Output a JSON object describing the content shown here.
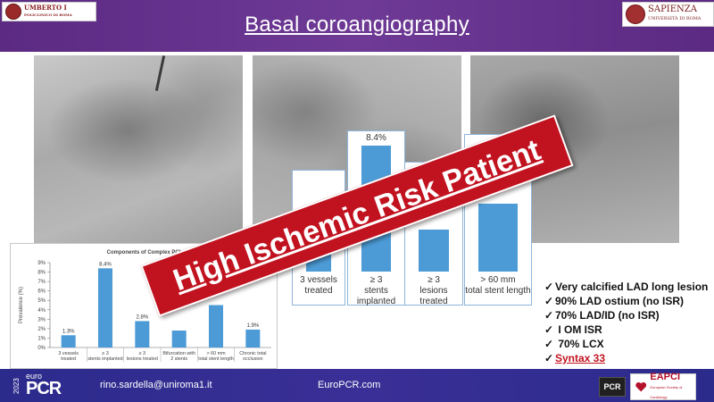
{
  "header": {
    "title": "Basal coroangiography",
    "logo_left": {
      "name": "UMBERTO I",
      "subtitle": "POLICLINICO DI ROMA"
    },
    "logo_right": {
      "name": "SAPIENZA",
      "subtitle": "UNIVERSITÀ DI ROMA"
    }
  },
  "banner": {
    "text": "High Ischemic Risk Patient"
  },
  "checklist": {
    "check_mark": "✓",
    "items": [
      "Very calcified LAD long lesion",
      "90% LAD ostium (no ISR)",
      "70%  LAD/ID (no ISR)",
      " I OM ISR",
      " 70% LCX",
      "Syntax 33"
    ]
  },
  "footer": {
    "year": "2023",
    "euro": "euro",
    "brand": "PCR",
    "email": "rino.sardella@uniroma1.it",
    "website": "EuroPCR.com",
    "pcr_logo": "PCR",
    "eapci_logo": "EAPCI",
    "eapci_subtitle": "European Society of Cardiology"
  },
  "colors": {
    "header_purple": "#5b2a82",
    "banner_red": "#c1121f",
    "bar_blue": "#4c9bd6",
    "footer_blue": "#2b2b8c"
  },
  "chart_data": [
    {
      "type": "bar",
      "title": "Components of Complex PCI",
      "ylabel": "Prevalence (%)",
      "xlabel": "",
      "ylim": [
        0,
        9
      ],
      "yticks": [
        "0%",
        "1%",
        "2%",
        "3%",
        "4%",
        "5%",
        "6%",
        "7%",
        "8%",
        "9%"
      ],
      "grid": false,
      "categories": [
        "3 vessels treated",
        "≥ 3 stents implanted",
        "≥ 3 lesions treated",
        "Bifurcation with 2 stents",
        "> 60 mm total stent length",
        "Chronic total occlusion"
      ],
      "values": [
        1.3,
        8.4,
        2.8,
        1.8,
        4.5,
        1.9
      ],
      "data_labels": [
        "1.3%",
        "8.4%",
        "2.8%",
        "",
        "",
        "1.9%"
      ]
    },
    {
      "type": "bar",
      "title": "",
      "ylim": [
        0,
        9
      ],
      "categories": [
        "3 vessels treated",
        "≥ 3 stents implanted",
        "≥ 3 lesions treated",
        "> 60 mm total stent length"
      ],
      "values": [
        1.3,
        8.4,
        2.8,
        4.5
      ],
      "data_labels": [
        "",
        "8.4%",
        "",
        ""
      ]
    }
  ]
}
